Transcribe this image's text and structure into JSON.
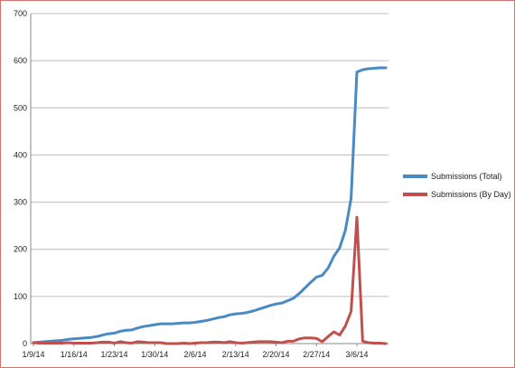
{
  "chart_data": {
    "type": "line",
    "title": "",
    "xlabel": "",
    "ylabel": "",
    "ylim": [
      0,
      700
    ],
    "y_ticks": [
      0,
      100,
      200,
      300,
      400,
      500,
      600,
      700
    ],
    "x_start": "1/9/14",
    "x_end": "3/11/14",
    "x_tick_labels": [
      "1/9/14",
      "1/16/14",
      "1/23/14",
      "1/30/14",
      "2/6/14",
      "2/13/14",
      "2/20/14",
      "2/27/14",
      "3/6/14"
    ],
    "grid": "horizontal",
    "legend_position": "right",
    "x": [
      "1/9/14",
      "1/10/14",
      "1/11/14",
      "1/12/14",
      "1/13/14",
      "1/14/14",
      "1/15/14",
      "1/16/14",
      "1/17/14",
      "1/18/14",
      "1/19/14",
      "1/20/14",
      "1/21/14",
      "1/22/14",
      "1/23/14",
      "1/24/14",
      "1/25/14",
      "1/26/14",
      "1/27/14",
      "1/28/14",
      "1/29/14",
      "1/30/14",
      "1/31/14",
      "2/1/14",
      "2/2/14",
      "2/3/14",
      "2/4/14",
      "2/5/14",
      "2/6/14",
      "2/7/14",
      "2/8/14",
      "2/9/14",
      "2/10/14",
      "2/11/14",
      "2/12/14",
      "2/13/14",
      "2/14/14",
      "2/15/14",
      "2/16/14",
      "2/17/14",
      "2/18/14",
      "2/19/14",
      "2/20/14",
      "2/21/14",
      "2/22/14",
      "2/23/14",
      "2/24/14",
      "2/25/14",
      "2/26/14",
      "2/27/14",
      "2/28/14",
      "3/1/14",
      "3/2/14",
      "3/3/14",
      "3/4/14",
      "3/5/14",
      "3/6/14",
      "3/7/14",
      "3/8/14",
      "3/9/14",
      "3/10/14",
      "3/11/14"
    ],
    "series": [
      {
        "name": "Submissions (Total)",
        "color": "#4a8ac4",
        "values": [
          2,
          3,
          4,
          5,
          6,
          7,
          9,
          10,
          11,
          12,
          13,
          15,
          18,
          21,
          22,
          26,
          28,
          29,
          33,
          36,
          38,
          40,
          42,
          42,
          42,
          43,
          44,
          44,
          45,
          47,
          49,
          52,
          55,
          57,
          61,
          63,
          64,
          66,
          69,
          73,
          77,
          81,
          84,
          86,
          91,
          96,
          106,
          118,
          130,
          141,
          145,
          160,
          185,
          203,
          240,
          308,
          576,
          581,
          583,
          584,
          585,
          585
        ]
      },
      {
        "name": "Submissions (By Day)",
        "color": "#c0504d",
        "values": [
          2,
          1,
          1,
          1,
          1,
          1,
          2,
          1,
          1,
          1,
          1,
          2,
          3,
          3,
          1,
          4,
          2,
          1,
          4,
          3,
          2,
          2,
          2,
          0,
          0,
          0,
          1,
          0,
          1,
          2,
          2,
          3,
          3,
          2,
          4,
          2,
          1,
          2,
          3,
          4,
          4,
          4,
          3,
          2,
          5,
          5,
          10,
          12,
          12,
          11,
          4,
          15,
          25,
          18,
          37,
          68,
          268,
          5,
          2,
          1,
          1,
          0
        ]
      }
    ]
  }
}
